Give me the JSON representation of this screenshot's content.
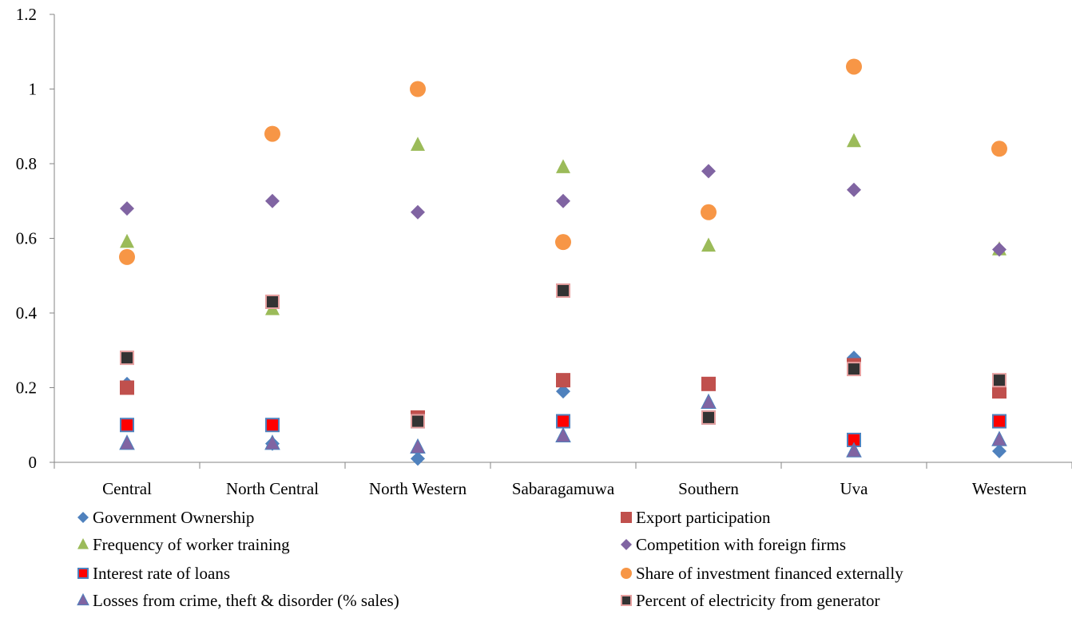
{
  "chart_data": {
    "type": "scatter",
    "title": "",
    "xlabel": "",
    "ylabel": "",
    "categories": [
      "Central",
      "North Central",
      "North Western",
      "Sabaragamuwa",
      "Southern",
      "Uva",
      "Western"
    ],
    "ylim": [
      0,
      1.2
    ],
    "yticks": [
      "0",
      "0.2",
      "0.4",
      "0.6",
      "0.8",
      "1",
      "1.2"
    ],
    "legend_position": "bottom",
    "grid": false,
    "series": [
      {
        "name": "Government Ownership",
        "marker": "diamond",
        "color": "#4F81BD",
        "values": [
          0.21,
          0.05,
          0.01,
          0.19,
          0.12,
          0.28,
          0.03
        ]
      },
      {
        "name": "Export participation",
        "marker": "square",
        "color": "#C0504D",
        "values": [
          0.2,
          0.43,
          0.12,
          0.22,
          0.21,
          0.26,
          0.19
        ]
      },
      {
        "name": "Frequency of worker training",
        "marker": "triangle",
        "color": "#9BBB59",
        "values": [
          0.59,
          0.41,
          0.85,
          0.79,
          0.58,
          0.86,
          0.57
        ]
      },
      {
        "name": "Competition with foreign firms",
        "marker": "diamond",
        "color": "#8064A2",
        "values": [
          0.68,
          0.7,
          0.67,
          0.7,
          0.78,
          0.73,
          0.57
        ]
      },
      {
        "name": "Interest rate of loans",
        "marker": "square-outlined",
        "color": "#FF0000",
        "stroke": "#4F81BD",
        "values": [
          0.1,
          0.1,
          0.11,
          0.11,
          0.12,
          0.06,
          0.11
        ]
      },
      {
        "name": "Share of investment financed externally",
        "marker": "circle",
        "color": "#F79646",
        "values": [
          0.55,
          0.88,
          1.0,
          0.59,
          0.67,
          1.06,
          0.84
        ]
      },
      {
        "name": "Losses from crime, theft & disorder (% sales)",
        "marker": "triangle",
        "color": "#8064A2",
        "stroke": "#4F81BD",
        "values": [
          0.05,
          0.05,
          0.04,
          0.07,
          0.16,
          0.03,
          0.06
        ]
      },
      {
        "name": "Percent of electricity from generator",
        "marker": "square-outlined",
        "color": "#333333",
        "stroke": "#E6A0A0",
        "values": [
          0.28,
          0.43,
          0.11,
          0.46,
          0.12,
          0.25,
          0.22
        ]
      }
    ]
  }
}
